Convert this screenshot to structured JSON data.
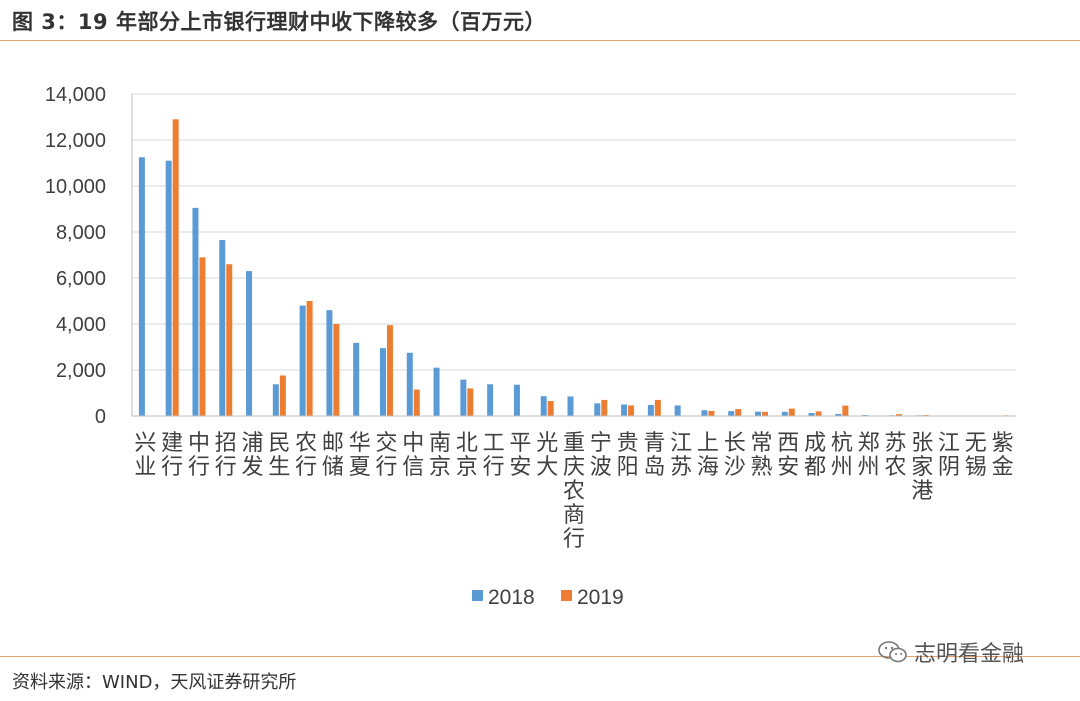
{
  "header": {
    "title": "图 3：19 年部分上市银行理财中收下降较多（百万元）"
  },
  "footer": {
    "source": "资料来源：WIND，天风证券研究所",
    "watermark": "志明看金融"
  },
  "colors": {
    "s2018": "#5b9bd5",
    "s2019": "#ed7d31",
    "grid": "#d9d9d9",
    "axis": "#bfbfbf",
    "rule": "#e8a370"
  },
  "chart_data": {
    "type": "bar",
    "title": "图 3：19 年部分上市银行理财中收下降较多（百万元）",
    "ylim": [
      0,
      14000
    ],
    "yticks": [
      "0",
      "2,000",
      "4,000",
      "6,000",
      "8,000",
      "10,000",
      "12,000",
      "14,000"
    ],
    "grid": true,
    "legend_position": "bottom",
    "categories": [
      "兴业",
      "建行",
      "中行",
      "招行",
      "浦发",
      "民生",
      "农行",
      "邮储",
      "华夏",
      "交行",
      "中信",
      "南京",
      "北京",
      "工行",
      "平安",
      "光大",
      "重庆农商行",
      "宁波",
      "贵阳",
      "青岛",
      "江苏",
      "上海",
      "长沙",
      "常熟",
      "西安",
      "成都",
      "杭州",
      "郑州",
      "苏农",
      "张家港",
      "江阴",
      "无锡",
      "紫金"
    ],
    "series": [
      {
        "name": "2018",
        "values": [
          11250,
          11100,
          9050,
          7650,
          6300,
          1380,
          4800,
          4600,
          3180,
          2950,
          2750,
          2100,
          1580,
          1380,
          1360,
          860,
          850,
          550,
          500,
          480,
          460,
          250,
          210,
          190,
          180,
          130,
          90,
          40,
          30,
          30,
          20,
          10,
          10
        ]
      },
      {
        "name": "2019",
        "values": [
          null,
          12900,
          6900,
          6600,
          null,
          1760,
          5000,
          4000,
          null,
          3950,
          1150,
          null,
          1200,
          null,
          null,
          650,
          null,
          700,
          460,
          700,
          null,
          220,
          300,
          180,
          320,
          200,
          450,
          20,
          80,
          40,
          10,
          10,
          30
        ]
      }
    ]
  }
}
